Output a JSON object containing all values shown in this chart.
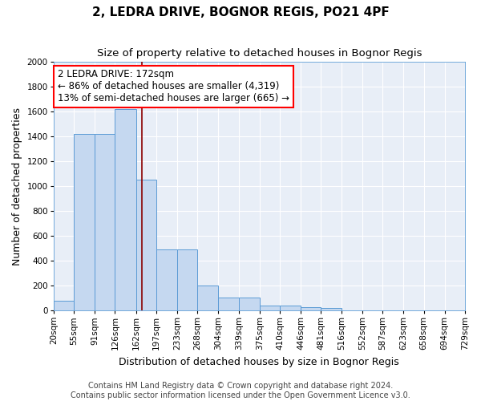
{
  "title": "2, LEDRA DRIVE, BOGNOR REGIS, PO21 4PF",
  "subtitle": "Size of property relative to detached houses in Bognor Regis",
  "xlabel": "Distribution of detached houses by size in Bognor Regis",
  "ylabel": "Number of detached properties",
  "bar_color": "#c5d8f0",
  "bar_edge_color": "#5b9bd5",
  "background_color": "#e8eef7",
  "grid_color": "#ffffff",
  "bin_edges": [
    20,
    55,
    91,
    126,
    162,
    197,
    233,
    268,
    304,
    339,
    375,
    410,
    446,
    481,
    516,
    552,
    587,
    623,
    658,
    694,
    729
  ],
  "bar_heights": [
    80,
    1420,
    1420,
    1620,
    1050,
    490,
    490,
    200,
    105,
    105,
    40,
    40,
    25,
    20,
    0,
    0,
    0,
    0,
    0,
    0
  ],
  "tick_labels": [
    "20sqm",
    "55sqm",
    "91sqm",
    "126sqm",
    "162sqm",
    "197sqm",
    "233sqm",
    "268sqm",
    "304sqm",
    "339sqm",
    "375sqm",
    "410sqm",
    "446sqm",
    "481sqm",
    "516sqm",
    "552sqm",
    "587sqm",
    "623sqm",
    "658sqm",
    "694sqm",
    "729sqm"
  ],
  "ylim": [
    0,
    2000
  ],
  "yticks": [
    0,
    200,
    400,
    600,
    800,
    1000,
    1200,
    1400,
    1600,
    1800,
    2000
  ],
  "red_line_x": 172,
  "annotation_text": "2 LEDRA DRIVE: 172sqm\n← 86% of detached houses are smaller (4,319)\n13% of semi-detached houses are larger (665) →",
  "annotation_box_color": "white",
  "annotation_box_edge_color": "red",
  "footer_text": "Contains HM Land Registry data © Crown copyright and database right 2024.\nContains public sector information licensed under the Open Government Licence v3.0.",
  "title_fontsize": 11,
  "subtitle_fontsize": 9.5,
  "xlabel_fontsize": 9,
  "ylabel_fontsize": 9,
  "tick_fontsize": 7.5,
  "annotation_fontsize": 8.5,
  "footer_fontsize": 7
}
